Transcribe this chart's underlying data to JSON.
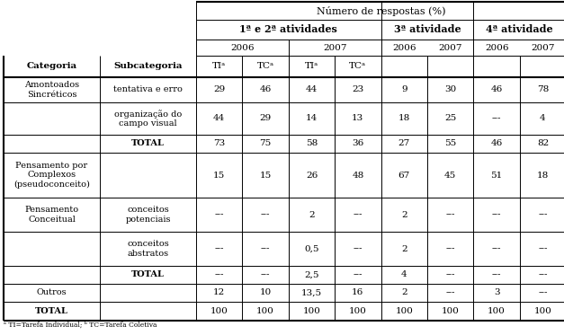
{
  "header_top": "Número de respostas (%)",
  "header_level2": [
    "1ª e 2ª atividades",
    "3ª atividade",
    "4ª atividade"
  ],
  "footnote": "ᵃ TI=Tarefa Individual; ᵇ TC=Tarefa Coletiva",
  "rows": [
    {
      "categoria": "Amontoados\nSincréticos",
      "subcategoria": "tentativa e erro",
      "vals": [
        "29",
        "46",
        "44",
        "23",
        "9",
        "30",
        "46",
        "78"
      ],
      "bold_sub": false,
      "bold_cat": false
    },
    {
      "categoria": "",
      "subcategoria": "organização do\ncampo visual",
      "vals": [
        "44",
        "29",
        "14",
        "13",
        "18",
        "25",
        "---",
        "4"
      ],
      "bold_sub": false,
      "bold_cat": false
    },
    {
      "categoria": "",
      "subcategoria": "TOTAL",
      "vals": [
        "73",
        "75",
        "58",
        "36",
        "27",
        "55",
        "46",
        "82"
      ],
      "bold_sub": true,
      "bold_cat": false
    },
    {
      "categoria": "Pensamento por\nComplexos\n(pseudoconceito)",
      "subcategoria": "",
      "vals": [
        "15",
        "15",
        "26",
        "48",
        "67",
        "45",
        "51",
        "18"
      ],
      "bold_sub": false,
      "bold_cat": false
    },
    {
      "categoria": "Pensamento\nConceitual",
      "subcategoria": "conceitos\npotenciais",
      "vals": [
        "---",
        "---",
        "2",
        "---",
        "2",
        "---",
        "---",
        "---"
      ],
      "bold_sub": false,
      "bold_cat": false
    },
    {
      "categoria": "",
      "subcategoria": "conceitos\nabstratos",
      "vals": [
        "---",
        "---",
        "0,5",
        "---",
        "2",
        "---",
        "---",
        "---"
      ],
      "bold_sub": false,
      "bold_cat": false
    },
    {
      "categoria": "",
      "subcategoria": "TOTAL",
      "vals": [
        "---",
        "---",
        "2,5",
        "---",
        "4",
        "---",
        "---",
        "---"
      ],
      "bold_sub": true,
      "bold_cat": false
    },
    {
      "categoria": "Outros",
      "subcategoria": "",
      "vals": [
        "12",
        "10",
        "13,5",
        "16",
        "2",
        "---",
        "3",
        "---"
      ],
      "bold_sub": false,
      "bold_cat": false
    },
    {
      "categoria": "TOTAL",
      "subcategoria": "",
      "vals": [
        "100",
        "100",
        "100",
        "100",
        "100",
        "100",
        "100",
        "100"
      ],
      "bold_sub": false,
      "bold_cat": true
    }
  ],
  "bg_color": "#ffffff",
  "line_color": "#000000",
  "text_color": "#000000"
}
